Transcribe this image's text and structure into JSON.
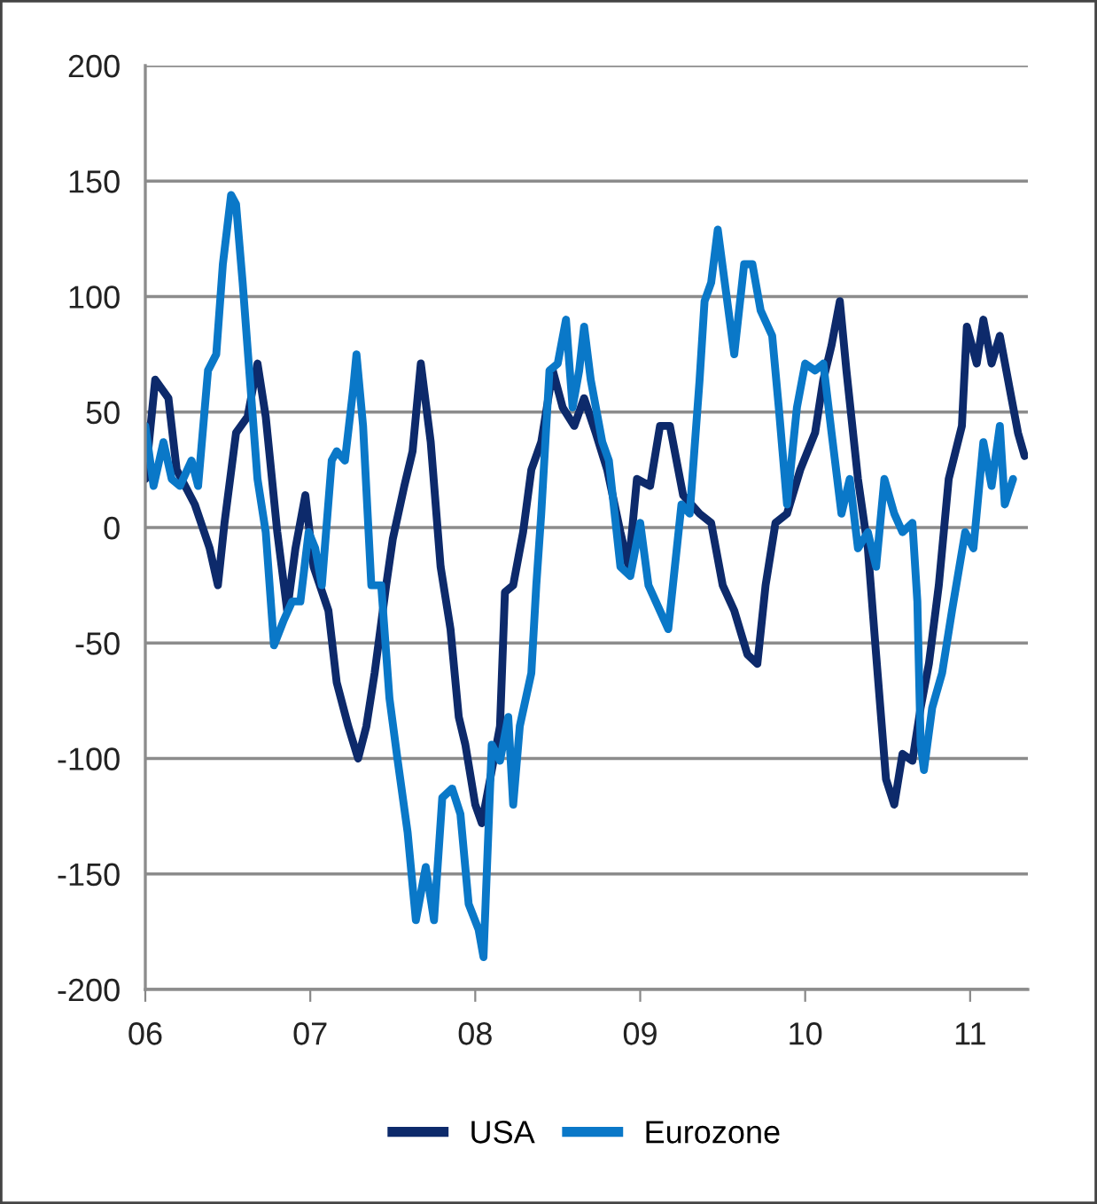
{
  "chart_data": {
    "type": "line",
    "xlim": [
      2006.0,
      2011.35
    ],
    "xticks": [
      {
        "value": 2006,
        "label": "06"
      },
      {
        "value": 2007,
        "label": "07"
      },
      {
        "value": 2008,
        "label": "08"
      },
      {
        "value": 2009,
        "label": "09"
      },
      {
        "value": 2010,
        "label": "10"
      },
      {
        "value": 2011,
        "label": "11"
      }
    ],
    "ylim": [
      -200,
      200
    ],
    "yticks": [
      -200,
      -150,
      -100,
      -50,
      0,
      50,
      100,
      150,
      200
    ],
    "grid": "y",
    "legend": "bottom",
    "marker": "none",
    "line_style": "solid",
    "series": [
      {
        "name": "USA",
        "color": "#0d2a6b",
        "x": [
          2006.0,
          2006.06,
          2006.14,
          2006.19,
          2006.3,
          2006.39,
          2006.44,
          2006.48,
          2006.55,
          2006.62,
          2006.68,
          2006.73,
          2006.8,
          2006.86,
          2006.91,
          2006.97,
          2007.02,
          2007.11,
          2007.16,
          2007.23,
          2007.29,
          2007.34,
          2007.39,
          2007.46,
          2007.5,
          2007.57,
          2007.62,
          2007.67,
          2007.73,
          2007.79,
          2007.85,
          2007.9,
          2007.94,
          2008.0,
          2008.04,
          2008.09,
          2008.15,
          2008.18,
          2008.23,
          2008.29,
          2008.34,
          2008.4,
          2008.47,
          2008.53,
          2008.6,
          2008.66,
          2008.73,
          2008.8,
          2008.88,
          2008.93,
          2008.98,
          2009.06,
          2009.12,
          2009.18,
          2009.26,
          2009.36,
          2009.43,
          2009.5,
          2009.57,
          2009.65,
          2009.71,
          2009.76,
          2009.82,
          2009.89,
          2009.97,
          2010.06,
          2010.11,
          2010.16,
          2010.21,
          2010.25,
          2010.32,
          2010.38,
          2010.43,
          2010.49,
          2010.54,
          2010.59,
          2010.65,
          2010.7,
          2010.75,
          2010.81,
          2010.87,
          2010.95,
          2010.98,
          2011.04,
          2011.08,
          2011.13,
          2011.18,
          2011.24,
          2011.29,
          2011.33
        ],
        "values": [
          21,
          64,
          56,
          25,
          10,
          -9,
          -25,
          2,
          41,
          48,
          71,
          48,
          -2,
          -36,
          -9,
          14,
          -17,
          -36,
          -67,
          -86,
          -100,
          -86,
          -63,
          -25,
          -5,
          18,
          33,
          71,
          37,
          -17,
          -44,
          -82,
          -94,
          -120,
          -128,
          -109,
          -86,
          -28,
          -25,
          -2,
          25,
          37,
          68,
          52,
          44,
          56,
          41,
          25,
          -2,
          -17,
          21,
          18,
          44,
          44,
          14,
          6,
          2,
          -25,
          -36,
          -55,
          -59,
          -25,
          2,
          6,
          25,
          41,
          64,
          79,
          98,
          68,
          21,
          -9,
          -55,
          -109,
          -120,
          -98,
          -101,
          -78,
          -59,
          -25,
          21,
          44,
          87,
          71,
          90,
          71,
          83,
          60,
          41,
          31
        ]
      },
      {
        "name": "Eurozone",
        "color": "#0a78c8",
        "x": [
          2006.0,
          2006.05,
          2006.11,
          2006.16,
          2006.21,
          2006.28,
          2006.32,
          2006.38,
          2006.43,
          2006.47,
          2006.52,
          2006.55,
          2006.59,
          2006.63,
          2006.68,
          2006.73,
          2006.78,
          2006.84,
          2006.89,
          2006.94,
          2006.99,
          2007.03,
          2007.07,
          2007.13,
          2007.16,
          2007.21,
          2007.26,
          2007.28,
          2007.32,
          2007.37,
          2007.43,
          2007.48,
          2007.53,
          2007.59,
          2007.64,
          2007.7,
          2007.75,
          2007.8,
          2007.86,
          2007.91,
          2007.96,
          2008.02,
          2008.05,
          2008.1,
          2008.15,
          2008.2,
          2008.23,
          2008.27,
          2008.34,
          2008.37,
          2008.4,
          2008.45,
          2008.5,
          2008.55,
          2008.59,
          2008.63,
          2008.66,
          2008.7,
          2008.77,
          2008.81,
          2008.88,
          2008.94,
          2009.0,
          2009.05,
          2009.17,
          2009.25,
          2009.3,
          2009.36,
          2009.39,
          2009.43,
          2009.47,
          2009.52,
          2009.57,
          2009.63,
          2009.68,
          2009.73,
          2009.8,
          2009.84,
          2009.89,
          2009.95,
          2010.0,
          2010.06,
          2010.11,
          2010.16,
          2010.22,
          2010.27,
          2010.32,
          2010.38,
          2010.43,
          2010.48,
          2010.54,
          2010.59,
          2010.65,
          2010.68,
          2010.7,
          2010.72,
          2010.77,
          2010.83,
          2010.89,
          2010.97,
          2011.02,
          2011.08,
          2011.13,
          2011.18,
          2011.21,
          2011.26
        ],
        "values": [
          44,
          18,
          37,
          21,
          18,
          29,
          18,
          68,
          75,
          114,
          144,
          140,
          106,
          68,
          21,
          -2,
          -51,
          -40,
          -32,
          -32,
          -2,
          -9,
          -25,
          29,
          33,
          29,
          60,
          75,
          44,
          -25,
          -25,
          -74,
          -101,
          -132,
          -170,
          -147,
          -170,
          -117,
          -113,
          -124,
          -163,
          -174,
          -186,
          -94,
          -101,
          -82,
          -120,
          -86,
          -63,
          -25,
          6,
          68,
          71,
          90,
          52,
          68,
          87,
          64,
          37,
          29,
          -17,
          -21,
          2,
          -25,
          -44,
          10,
          6,
          64,
          98,
          106,
          129,
          102,
          75,
          114,
          114,
          94,
          83,
          52,
          10,
          52,
          71,
          68,
          71,
          41,
          6,
          21,
          -9,
          -2,
          -17,
          21,
          6,
          -2,
          2,
          -32,
          -94,
          -105,
          -78,
          -63,
          -36,
          -2,
          -9,
          37,
          18,
          44,
          10,
          21
        ]
      }
    ]
  }
}
